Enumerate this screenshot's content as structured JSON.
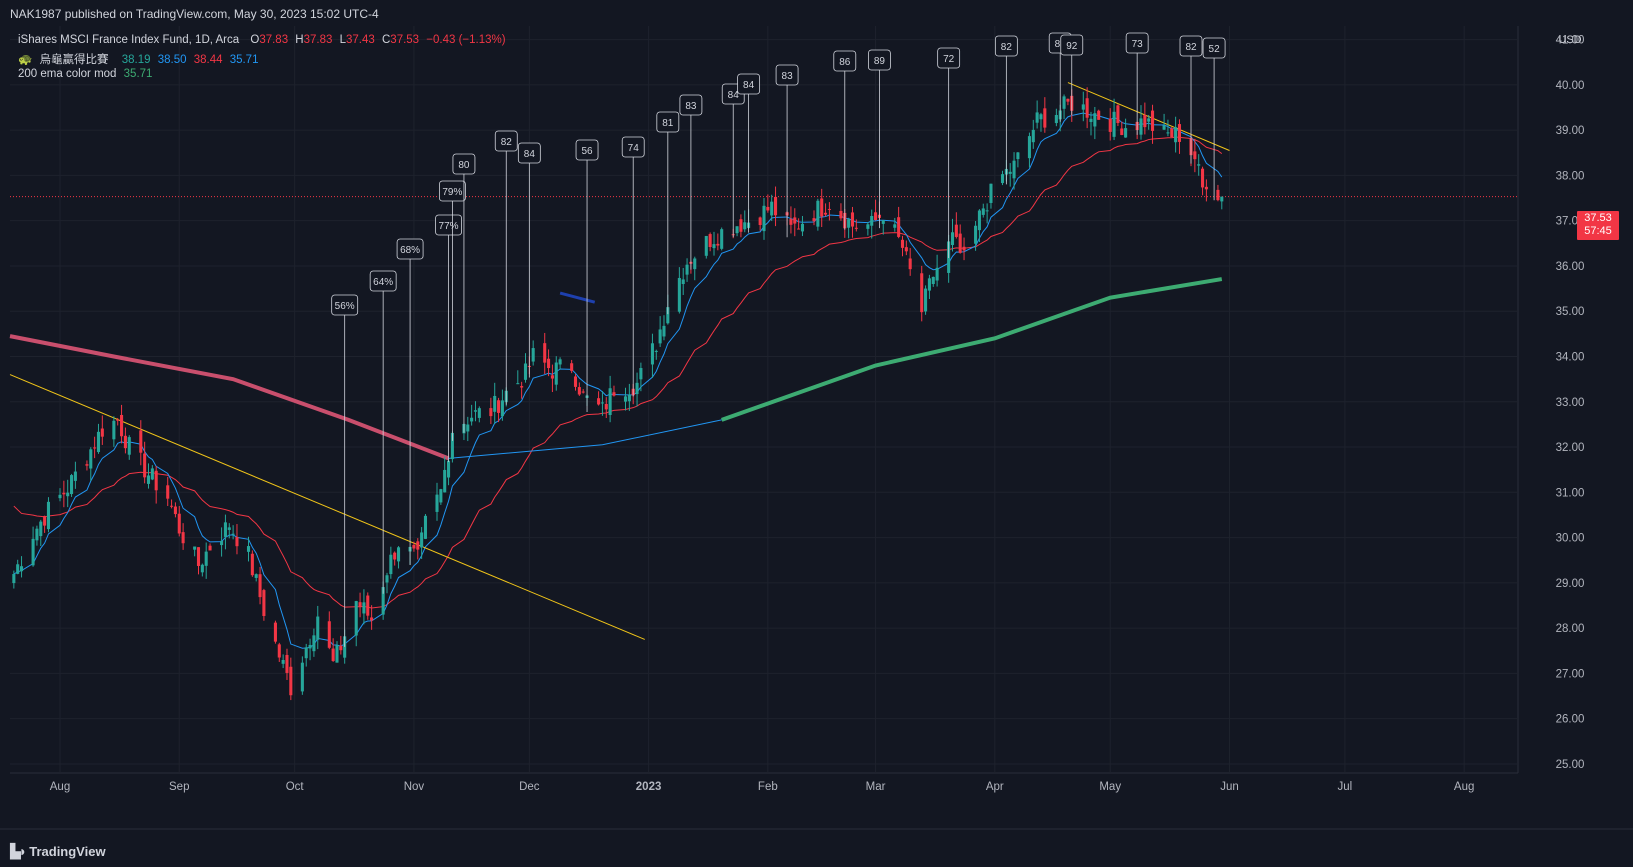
{
  "header": {
    "publisher": "NAK1987 published on TradingView.com, May 30, 2023 15:02 UTC-4"
  },
  "legend": {
    "symbol": "iShares MSCI France Index Fund, 1D, Arca",
    "o_label": "O",
    "o": "37.83",
    "h_label": "H",
    "h": "37.83",
    "l_label": "L",
    "l": "37.43",
    "c_label": "C",
    "c": "37.53",
    "change": "−0.43 (−1.13%)",
    "indicator1_name": "烏龜贏得比賽",
    "indicator1_values": [
      "38.19",
      "38.50",
      "38.44",
      "35.71"
    ],
    "indicator2_name": "200 ema color mod",
    "indicator2_value": "35.71"
  },
  "price_tag": {
    "price": "37.53",
    "countdown": "57:45"
  },
  "footer": {
    "brand": "TradingView"
  },
  "colors": {
    "background": "#131722",
    "grid": "#1e222d",
    "up": "#26a69a",
    "down": "#f23645",
    "ema_fast": "#2196f3",
    "ema_slow": "#f23645",
    "ema200_up": "#3dab72",
    "ema200_down": "#c94f6d",
    "trendline": "#f0c419"
  },
  "chart_data": {
    "type": "candlestick",
    "currency": "USD",
    "y_ticks": [
      25,
      26,
      27,
      28,
      29,
      30,
      31,
      32,
      33,
      34,
      35,
      36,
      37,
      38,
      39,
      40,
      41
    ],
    "y_tick_labels": [
      "25.00",
      "26.00",
      "27.00",
      "28.00",
      "29.00",
      "30.00",
      "31.00",
      "32.00",
      "33.00",
      "34.00",
      "35.00",
      "36.00",
      "37.00",
      "38.00",
      "39.00",
      "40.00",
      "41.00"
    ],
    "ylim": [
      24.8,
      41.3
    ],
    "x_ticks": [
      "Aug",
      "Sep",
      "Oct",
      "Nov",
      "Dec",
      "2023",
      "Feb",
      "Mar",
      "Apr",
      "May",
      "Jun",
      "Jul",
      "Aug"
    ],
    "x_tick_dates": [
      "2022-08-01",
      "2022-09-01",
      "2022-10-01",
      "2022-11-01",
      "2022-12-01",
      "2023-01-01",
      "2023-02-01",
      "2023-03-01",
      "2023-04-01",
      "2023-05-01",
      "2023-06-01",
      "2023-07-01",
      "2023-08-01"
    ],
    "x_range": [
      "2022-07-19",
      "2023-08-15"
    ],
    "last_price": 37.53,
    "closes_approx": [
      [
        "2022-07-20",
        29.2
      ],
      [
        "2022-07-25",
        30.1
      ],
      [
        "2022-07-29",
        30.6
      ],
      [
        "2022-08-03",
        31.1
      ],
      [
        "2022-08-08",
        31.8
      ],
      [
        "2022-08-12",
        32.4
      ],
      [
        "2022-08-16",
        32.6
      ],
      [
        "2022-08-19",
        32.0
      ],
      [
        "2022-08-24",
        31.4
      ],
      [
        "2022-08-29",
        30.9
      ],
      [
        "2022-09-01",
        30.2
      ],
      [
        "2022-09-06",
        29.4
      ],
      [
        "2022-09-09",
        29.8
      ],
      [
        "2022-09-14",
        30.3
      ],
      [
        "2022-09-19",
        29.6
      ],
      [
        "2022-09-23",
        28.4
      ],
      [
        "2022-09-27",
        27.4
      ],
      [
        "2022-09-30",
        26.7
      ],
      [
        "2022-10-04",
        27.6
      ],
      [
        "2022-10-07",
        28.3
      ],
      [
        "2022-10-11",
        27.2
      ],
      [
        "2022-10-13",
        27.6
      ],
      [
        "2022-10-17",
        28.6
      ],
      [
        "2022-10-21",
        28.2
      ],
      [
        "2022-10-25",
        29.3
      ],
      [
        "2022-10-28",
        29.9
      ],
      [
        "2022-11-02",
        29.5
      ],
      [
        "2022-11-04",
        30.3
      ],
      [
        "2022-11-08",
        31.0
      ],
      [
        "2022-11-11",
        32.4
      ],
      [
        "2022-11-16",
        32.7
      ],
      [
        "2022-11-21",
        32.8
      ],
      [
        "2022-11-25",
        33.2
      ],
      [
        "2022-11-30",
        33.6
      ],
      [
        "2022-12-02",
        34.0
      ],
      [
        "2022-12-07",
        33.7
      ],
      [
        "2022-12-12",
        33.8
      ],
      [
        "2022-12-15",
        33.1
      ],
      [
        "2022-12-20",
        32.8
      ],
      [
        "2022-12-23",
        33.3
      ],
      [
        "2022-12-29",
        33.4
      ],
      [
        "2023-01-03",
        34.3
      ],
      [
        "2023-01-06",
        35.2
      ],
      [
        "2023-01-11",
        36.1
      ],
      [
        "2023-01-17",
        36.6
      ],
      [
        "2023-01-23",
        36.9
      ],
      [
        "2023-01-27",
        37.0
      ],
      [
        "2023-02-02",
        37.3
      ],
      [
        "2023-02-07",
        36.8
      ],
      [
        "2023-02-13",
        37.2
      ],
      [
        "2023-02-17",
        37.4
      ],
      [
        "2023-02-23",
        36.9
      ],
      [
        "2023-02-28",
        36.9
      ],
      [
        "2023-03-03",
        37.2
      ],
      [
        "2023-03-08",
        36.4
      ],
      [
        "2023-03-13",
        35.0
      ],
      [
        "2023-03-16",
        35.8
      ],
      [
        "2023-03-21",
        36.6
      ],
      [
        "2023-03-24",
        36.1
      ],
      [
        "2023-03-29",
        37.3
      ],
      [
        "2023-04-03",
        38.0
      ],
      [
        "2023-04-06",
        38.2
      ],
      [
        "2023-04-12",
        39.2
      ],
      [
        "2023-04-17",
        39.4
      ],
      [
        "2023-04-21",
        39.6
      ],
      [
        "2023-04-26",
        39.4
      ],
      [
        "2023-05-01",
        39.2
      ],
      [
        "2023-05-05",
        39.1
      ],
      [
        "2023-05-10",
        39.2
      ],
      [
        "2023-05-15",
        38.9
      ],
      [
        "2023-05-19",
        38.9
      ],
      [
        "2023-05-23",
        38.4
      ],
      [
        "2023-05-25",
        37.7
      ],
      [
        "2023-05-26",
        37.9
      ],
      [
        "2023-05-30",
        37.53
      ]
    ],
    "series": [
      {
        "name": "EMA fast",
        "color": "#2196f3"
      },
      {
        "name": "EMA slow",
        "color": "#f23645"
      },
      {
        "name": "200 ema color mod",
        "color": "#3dab72"
      }
    ],
    "vertical_labels": [
      {
        "date": "2022-10-14",
        "text": "56%"
      },
      {
        "date": "2022-10-24",
        "text": "64%"
      },
      {
        "date": "2022-10-31",
        "text": "68%"
      },
      {
        "date": "2022-11-10",
        "text": "77%"
      },
      {
        "date": "2022-11-11",
        "text": "79%"
      },
      {
        "date": "2022-11-14",
        "text": "80"
      },
      {
        "date": "2022-11-25",
        "text": "82"
      },
      {
        "date": "2022-12-01",
        "text": "84"
      },
      {
        "date": "2022-12-16",
        "text": "56"
      },
      {
        "date": "2022-12-28",
        "text": "74"
      },
      {
        "date": "2023-01-06",
        "text": "81"
      },
      {
        "date": "2023-01-12",
        "text": "83"
      },
      {
        "date": "2023-01-23",
        "text": "84"
      },
      {
        "date": "2023-01-27",
        "text": "84"
      },
      {
        "date": "2023-02-06",
        "text": "83"
      },
      {
        "date": "2023-02-21",
        "text": "86"
      },
      {
        "date": "2023-03-02",
        "text": "89"
      },
      {
        "date": "2023-03-20",
        "text": "72"
      },
      {
        "date": "2023-04-04",
        "text": "82"
      },
      {
        "date": "2023-04-18",
        "text": "80"
      },
      {
        "date": "2023-04-21",
        "text": "92"
      },
      {
        "date": "2023-05-08",
        "text": "73"
      },
      {
        "date": "2023-05-22",
        "text": "82"
      },
      {
        "date": "2023-05-28",
        "text": "52"
      }
    ]
  }
}
